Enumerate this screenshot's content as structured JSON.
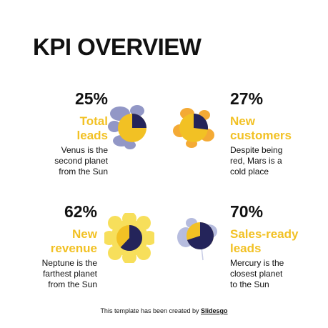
{
  "title": "KPI OVERVIEW",
  "kpis": [
    {
      "percent": "25%",
      "label_lines": [
        "Total",
        "leads"
      ],
      "desc_lines": [
        "Venus is the",
        "second planet",
        "from the Sun"
      ],
      "value": 0.25
    },
    {
      "percent": "27%",
      "label_lines": [
        "New",
        "customers"
      ],
      "desc_lines": [
        "Despite being",
        "red, Mars is a",
        "cold place"
      ],
      "value": 0.27
    },
    {
      "percent": "62%",
      "label_lines": [
        "New",
        "revenue"
      ],
      "desc_lines": [
        "Neptune is the",
        "farthest planet",
        "from the Sun"
      ],
      "value": 0.62
    },
    {
      "percent": "70%",
      "label_lines": [
        "Sales-ready",
        "leads"
      ],
      "desc_lines": [
        "Mercury is the",
        "closest planet",
        "to the Sun"
      ],
      "value": 0.7
    }
  ],
  "footer": {
    "prefix": "This template has been created by ",
    "brand": "Slidesgo"
  },
  "colors": {
    "accent": "#f2c124",
    "dark": "#24245a",
    "splash_blue": "#7f86bd",
    "splash_orange": "#f39c12"
  }
}
